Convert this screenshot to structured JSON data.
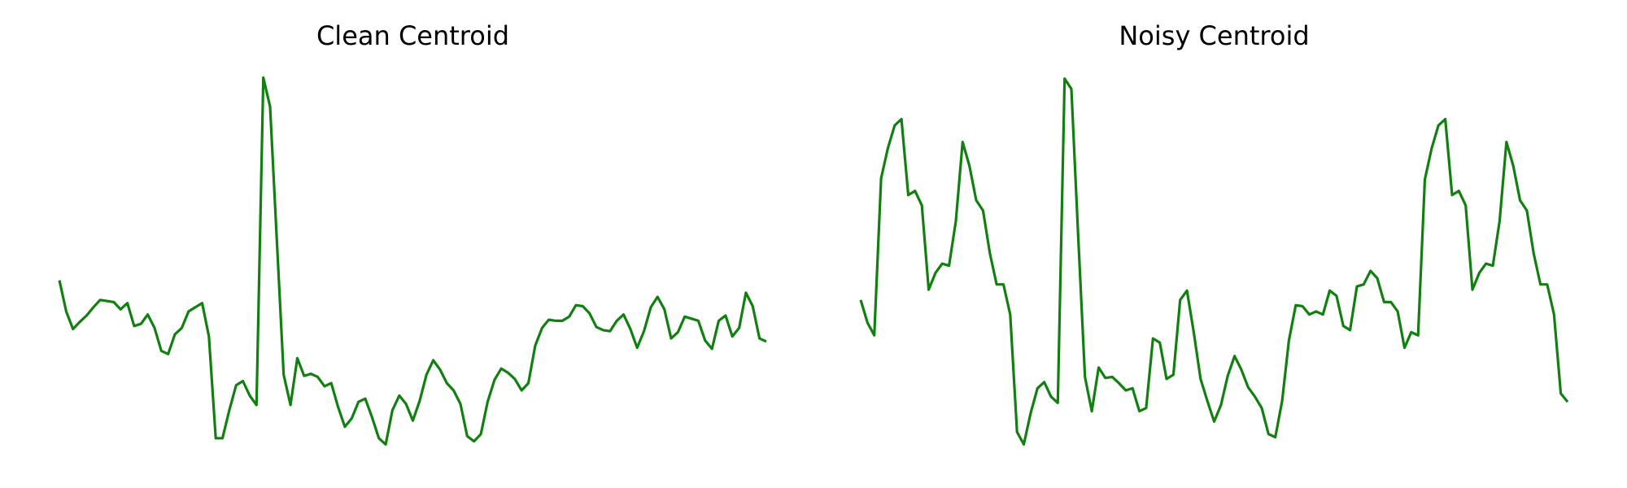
{
  "chart_data": [
    {
      "type": "line",
      "title": "Clean Centroid",
      "color": "#118011",
      "ylim": [
        0,
        360
      ],
      "values": [
        160,
        130,
        113,
        120,
        126,
        134,
        141,
        140,
        139,
        132,
        138,
        116,
        118,
        127,
        114,
        92,
        89,
        108,
        114,
        130,
        134,
        138,
        106,
        8,
        8,
        35,
        59,
        63,
        49,
        40,
        355,
        327,
        197,
        69,
        40,
        85,
        68,
        70,
        67,
        58,
        61,
        38,
        19,
        27,
        43,
        46,
        28,
        8,
        2,
        35,
        49,
        41,
        25,
        44,
        69,
        83,
        74,
        61,
        54,
        41,
        10,
        5,
        12,
        43,
        64,
        75,
        71,
        65,
        54,
        61,
        97,
        114,
        122,
        121,
        121,
        125,
        136,
        135,
        128,
        115,
        112,
        111,
        121,
        127,
        113,
        95,
        111,
        134,
        144,
        132,
        104,
        110,
        125,
        123,
        121,
        102,
        94,
        121,
        126,
        106,
        114,
        148,
        135,
        104,
        101
      ]
    },
    {
      "type": "line",
      "title": "Noisy Centroid",
      "color": "#118011",
      "ylim": [
        0,
        360
      ],
      "values": [
        141,
        119,
        107,
        258,
        287,
        309,
        315,
        242,
        246,
        232,
        151,
        167,
        176,
        174,
        217,
        293,
        270,
        237,
        227,
        186,
        156,
        156,
        127,
        14,
        2,
        32,
        56,
        62,
        48,
        42,
        354,
        344,
        202,
        67,
        34,
        76,
        66,
        67,
        61,
        54,
        56,
        34,
        37,
        104,
        100,
        65,
        69,
        141,
        150,
        110,
        65,
        44,
        24,
        40,
        68,
        87,
        74,
        57,
        48,
        37,
        12,
        9,
        44,
        102,
        136,
        135,
        127,
        130,
        127,
        150,
        145,
        116,
        112,
        154,
        156,
        169,
        162,
        139,
        139,
        130,
        95,
        110,
        107,
        257,
        287,
        309,
        315,
        242,
        246,
        232,
        151,
        167,
        176,
        174,
        217,
        293,
        270,
        237,
        227,
        186,
        156,
        156,
        127,
        51,
        43
      ]
    }
  ]
}
